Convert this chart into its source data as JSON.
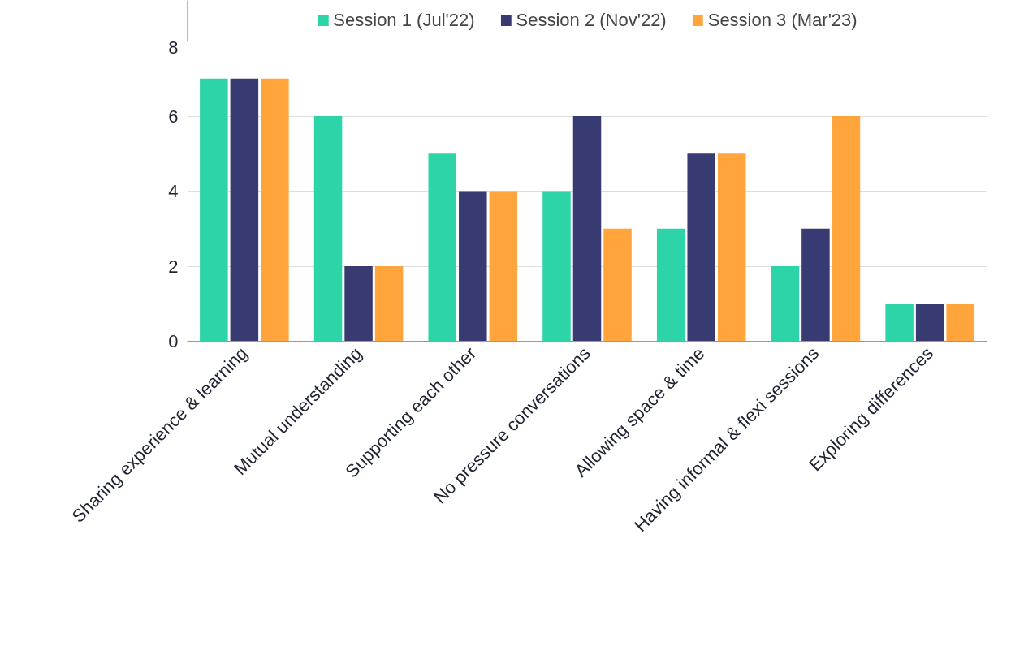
{
  "chart_data": {
    "type": "bar",
    "categories": [
      "Sharing experience & learning",
      "Mutual understanding",
      "Supporting each other",
      "No pressure conversations",
      "Allowing space & time",
      "Having informal & flexi sessions",
      "Exploring differences"
    ],
    "series": [
      {
        "name": "Session 1 (Jul'22)",
        "color": "#2dd4a8",
        "values": [
          7,
          6,
          5,
          4,
          3,
          2,
          1
        ]
      },
      {
        "name": "Session 2 (Nov'22)",
        "color": "#383a72",
        "values": [
          7,
          2,
          4,
          6,
          5,
          3,
          1
        ]
      },
      {
        "name": "Session 3 (Mar'23)",
        "color": "#ffa53c",
        "values": [
          7,
          2,
          4,
          3,
          5,
          6,
          1
        ]
      }
    ],
    "ylim": [
      0,
      8
    ],
    "yticks": [
      0,
      2,
      4,
      6,
      8
    ],
    "grid": "y",
    "legend": "top"
  }
}
